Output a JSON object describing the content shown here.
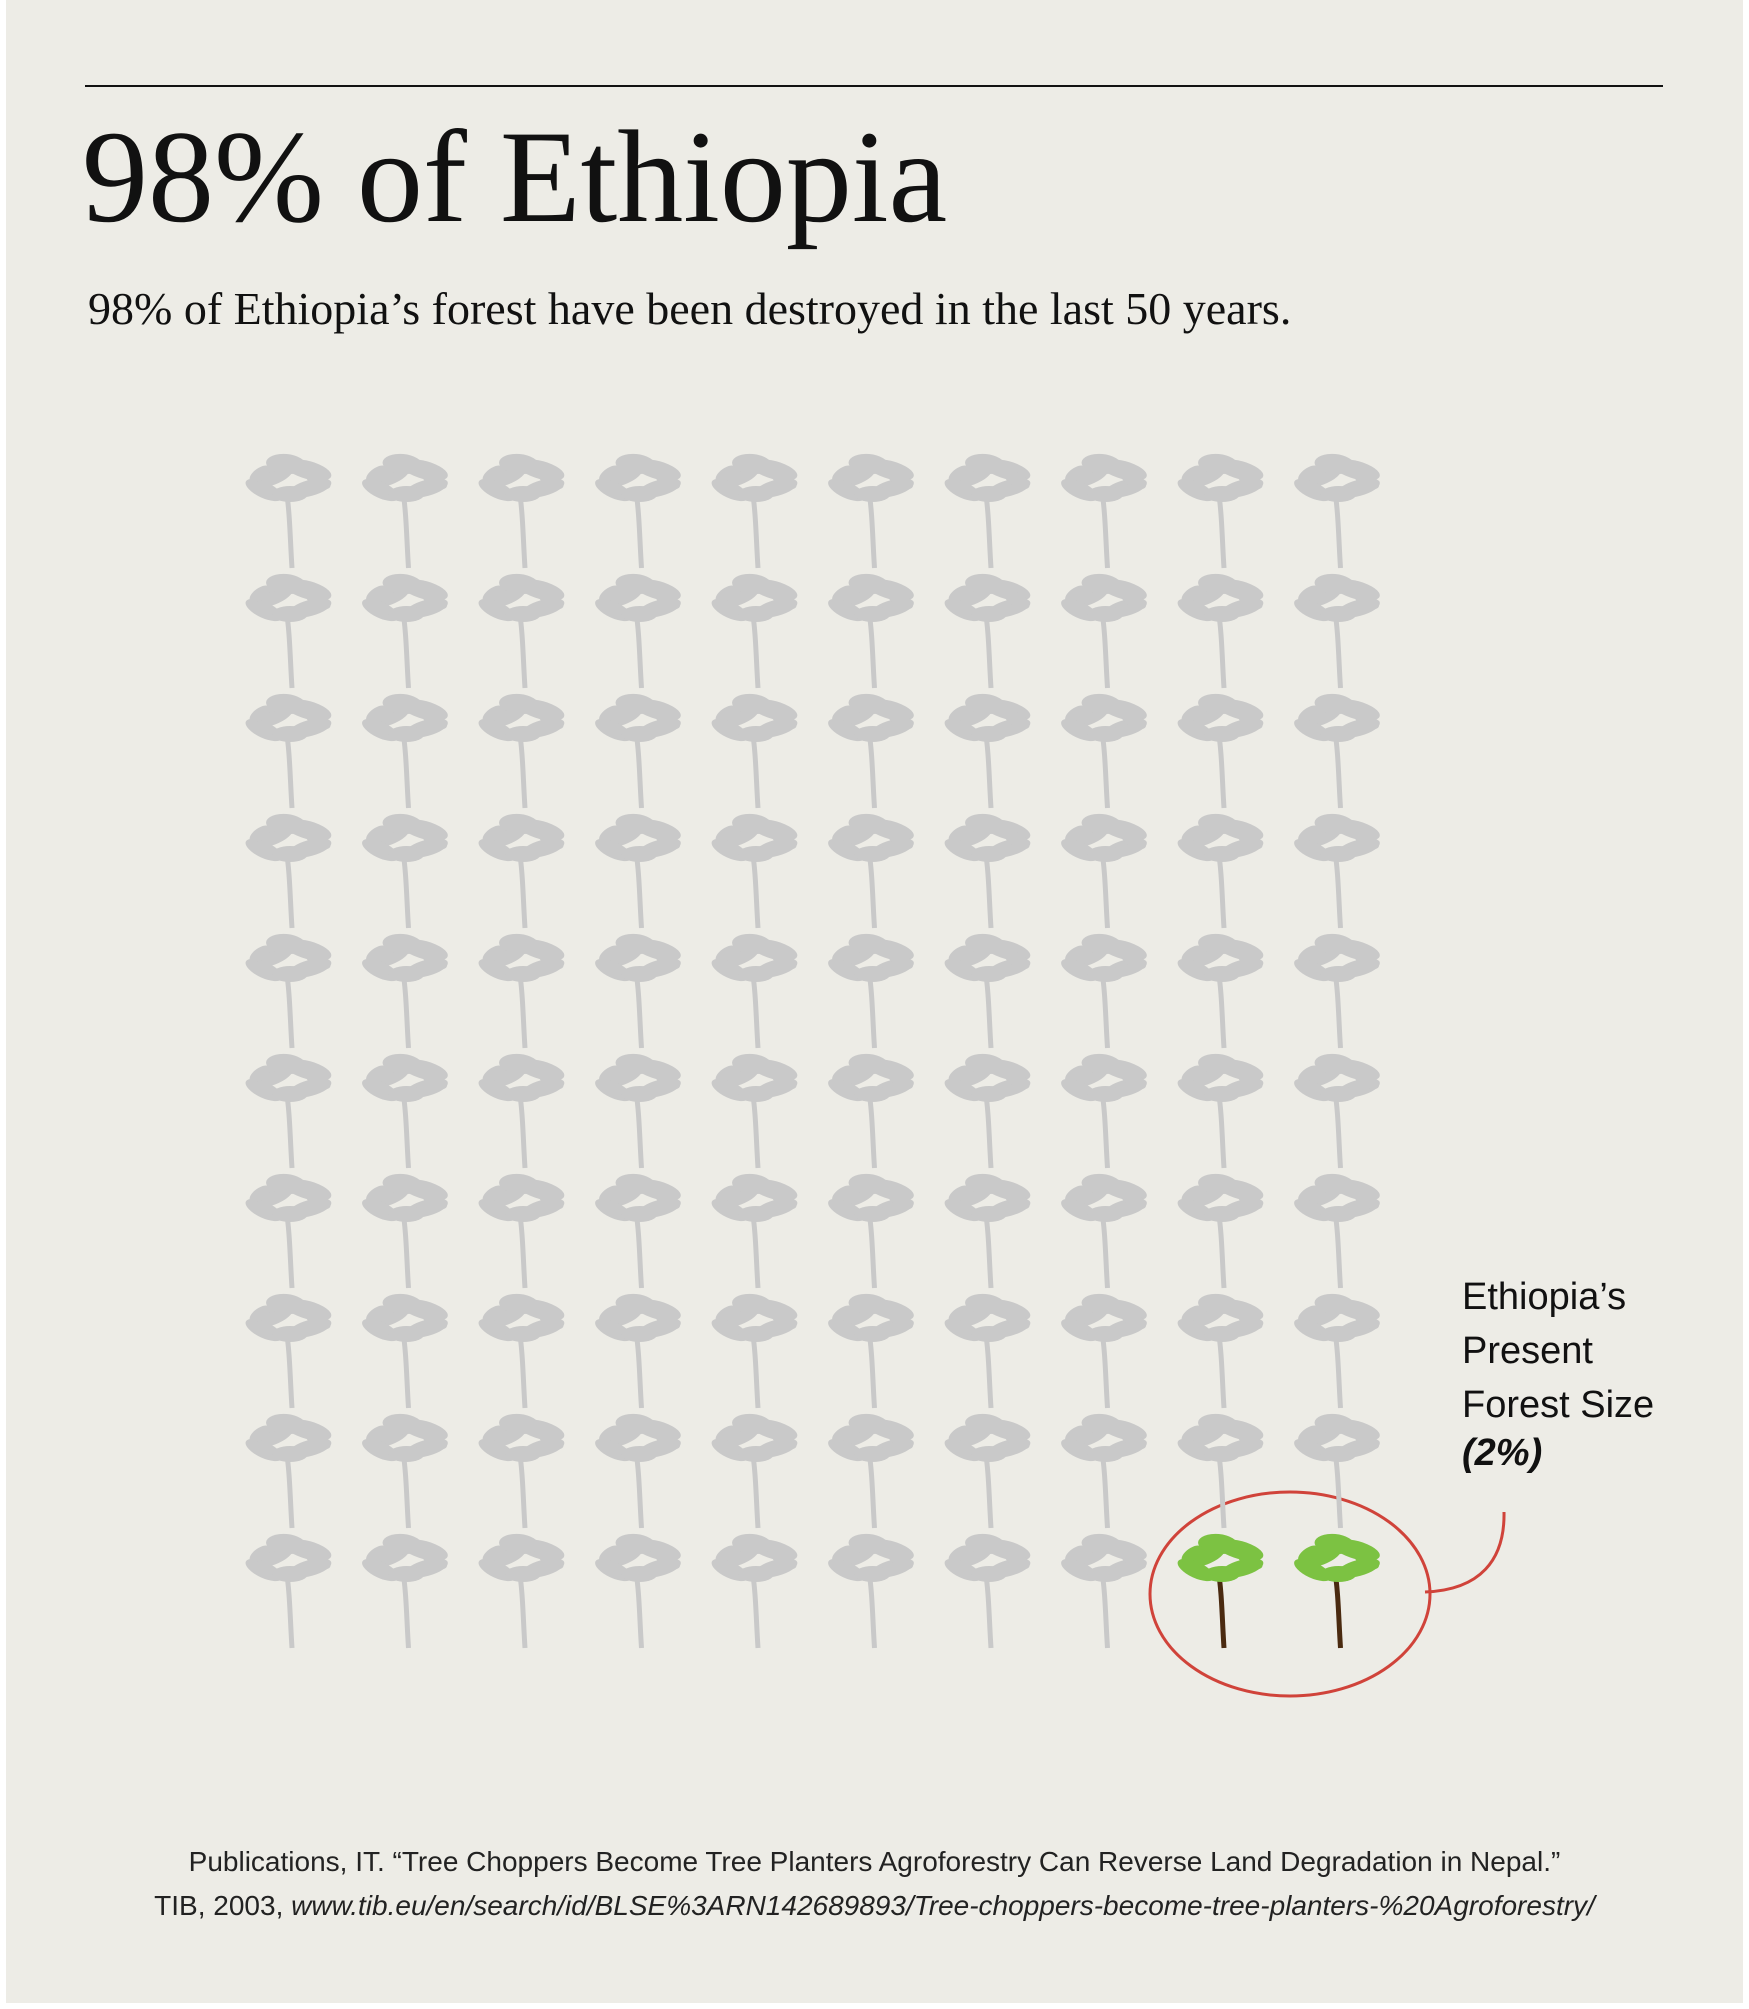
{
  "chart_data": {
    "type": "waffle",
    "title": "98% of Ethiopia",
    "subtitle": "98% of Ethiopia’s forest have been destroyed in the last 50 years.",
    "values": [
      98,
      2
    ],
    "colors": [
      "#c9c9c9",
      "#7cc242"
    ],
    "annotation": "Ethiopia’s Present Forest Size",
    "value_labels": [
      null,
      "(2%)"
    ],
    "source": {
      "line1": "Publications, IT. “Tree Choppers Become Tree Planters Agroforestry Can Reverse Land Degradation in Nepal.”",
      "line2": "TIB, 2003,",
      "url": "www.tib.eu/en/search/id/BLSE%3ARN142689893/Tree-choppers-become-tree-planters-%20Agroforestry/"
    }
  }
}
